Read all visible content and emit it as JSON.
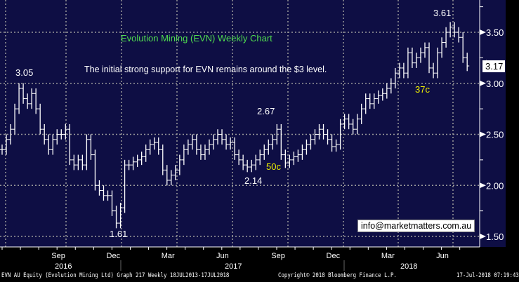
{
  "chart_data": {
    "type": "ohlc",
    "title": "Evolution Mining (EVN) Weekly Chart",
    "subtitle": "The initial strong support for EVN remains around the $3 level.",
    "ylim": [
      1.45,
      3.7
    ],
    "y_ticks": [
      "1.50",
      "2.00",
      "2.50",
      "3.00",
      "3.50"
    ],
    "y_tick_values": [
      1.5,
      2.0,
      2.5,
      3.0,
      3.5
    ],
    "x_month_labels": [
      "Sep",
      "Dec",
      "Mar",
      "Jun",
      "Sep",
      "Dec",
      "Mar",
      "Jun"
    ],
    "x_month_weeks": [
      13,
      26,
      39,
      52,
      65,
      78,
      91,
      104
    ],
    "x_year_labels": [
      "2016",
      "2017",
      "2018"
    ],
    "close": [
      2.35,
      2.45,
      2.55,
      2.75,
      2.95,
      2.85,
      2.8,
      2.9,
      2.75,
      2.55,
      2.45,
      2.35,
      2.45,
      2.5,
      2.5,
      2.55,
      2.25,
      2.2,
      2.25,
      2.2,
      2.45,
      2.3,
      2.0,
      1.95,
      1.9,
      1.9,
      1.75,
      1.63,
      1.78,
      2.2,
      2.2,
      2.23,
      2.25,
      2.28,
      2.35,
      2.4,
      2.42,
      2.35,
      2.15,
      2.05,
      2.1,
      2.15,
      2.25,
      2.35,
      2.4,
      2.45,
      2.35,
      2.3,
      2.35,
      2.4,
      2.45,
      2.5,
      2.45,
      2.4,
      2.42,
      2.3,
      2.25,
      2.2,
      2.18,
      2.2,
      2.25,
      2.3,
      2.35,
      2.4,
      2.45,
      2.55,
      2.3,
      2.22,
      2.25,
      2.28,
      2.3,
      2.35,
      2.4,
      2.45,
      2.5,
      2.55,
      2.5,
      2.45,
      2.38,
      2.4,
      2.6,
      2.65,
      2.6,
      2.55,
      2.65,
      2.75,
      2.85,
      2.8,
      2.85,
      2.88,
      2.9,
      2.95,
      3.0,
      3.1,
      3.15,
      3.1,
      3.3,
      3.2,
      3.25,
      3.3,
      3.35,
      3.15,
      3.1,
      3.3,
      3.4,
      3.5,
      3.55,
      3.5,
      3.45,
      3.25,
      3.17
    ],
    "last_price": "3.17",
    "annotations": [
      {
        "text": "3.05",
        "week": 4,
        "value": 3.05
      },
      {
        "text": "1.61",
        "week": 27,
        "value": 1.61
      },
      {
        "text": "2.67",
        "week": 65,
        "value": 2.67
      },
      {
        "text": "2.14",
        "week": 58,
        "value": 2.14
      },
      {
        "text": "3.61",
        "week": 106,
        "value": 3.61
      },
      {
        "text": "50c",
        "week": 64,
        "value": 2.2,
        "color": "#f0f000"
      },
      {
        "text": "37c",
        "week": 100,
        "value": 3.0,
        "color": "#f0f000"
      }
    ],
    "colors": {
      "background": "#0e0e44",
      "bars": "#ffffff",
      "grid": "#9a9a9a",
      "title": "#4fdc4f"
    }
  },
  "email": "info@marketmatters.com.au",
  "footer": {
    "left": "EVN AU Equity (Evolution Mining Ltd) Graph 217  Weekly 18JUL2013-17JUL2018",
    "center": "Copyright© 2018 Bloomberg Finance L.P.",
    "right": "17-Jul-2018 07:19:43"
  }
}
